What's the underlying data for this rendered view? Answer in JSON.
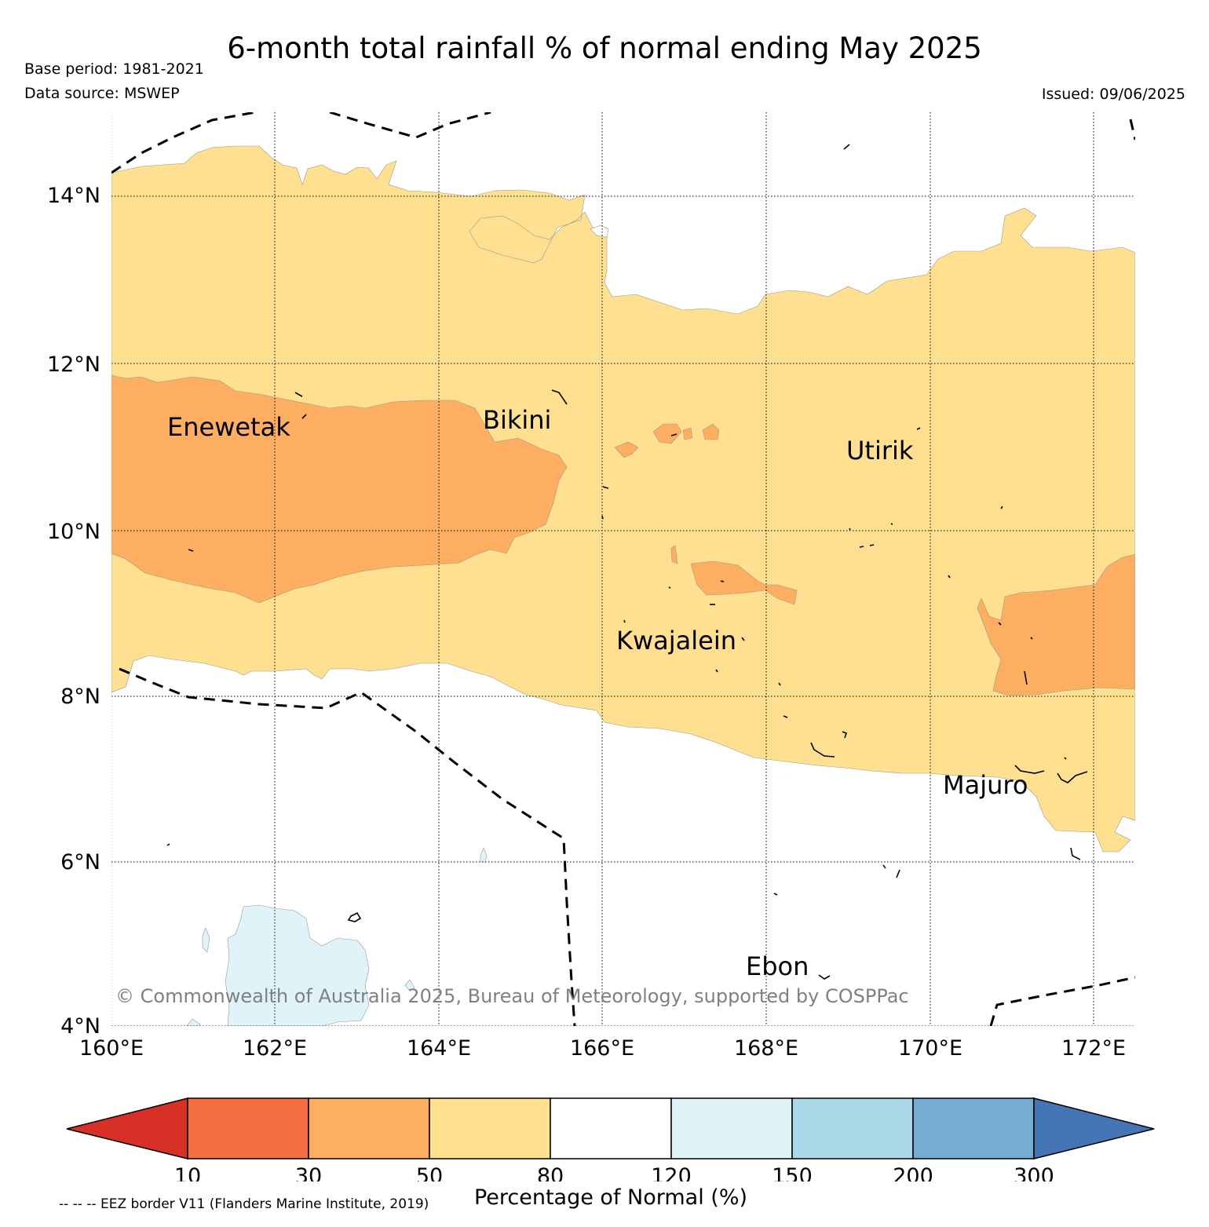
{
  "title": "6-month total rainfall % of normal ending May 2025",
  "base_period": "Base period: 1981-2021",
  "data_source": "Data source: MSWEP",
  "issued": "Issued: 09/06/2025",
  "copyright": "© Commonwealth of Australia 2025, Bureau of Meteorology, supported by COSPPac",
  "map": {
    "lon_range": [
      160,
      172.5
    ],
    "lat_range": [
      4,
      15
    ],
    "lat_ticks": [
      "14°N",
      "12°N",
      "10°N",
      "8°N",
      "6°N",
      "4°N"
    ],
    "lon_ticks": [
      "160°E",
      "162°E",
      "164°E",
      "166°E",
      "168°E",
      "170°E",
      "172°E"
    ],
    "places": [
      "Enewetak",
      "Bikini",
      "Utirik",
      "Kwajalein",
      "Majuro",
      "Ebon"
    ],
    "gridlines": true
  },
  "legend": {
    "title": "Percentage of Normal (%)",
    "ticks": [
      "10",
      "30",
      "50",
      "80",
      "120",
      "150",
      "200",
      "300"
    ],
    "colors": {
      "lt10": "#d73027",
      "10-30": "#f46d43",
      "30-50": "#fdae61",
      "50-80": "#fee090",
      "80-120": "#ffffff",
      "120-150": "#e0f3f8",
      "150-200": "#abd9e9",
      "200-300": "#74add1",
      "gt300": "#4575b4"
    }
  },
  "eez_note": "-- -- -- EEZ border V11 (Flanders Marine Institute, 2019)"
}
